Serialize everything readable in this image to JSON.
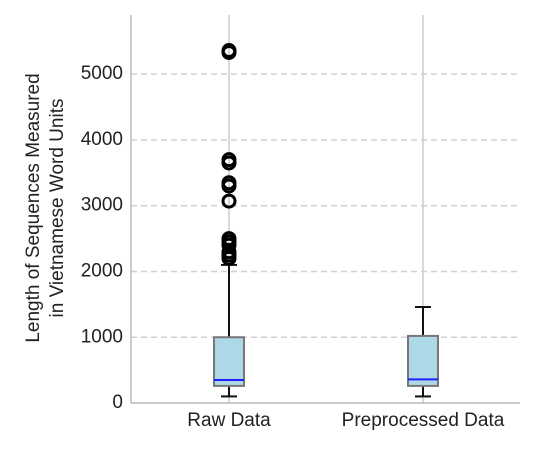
{
  "chart_data": {
    "type": "box",
    "ylabel": [
      "Length of Sequences Measured",
      "in Vietnamese Word Units"
    ],
    "categories": [
      "Raw Data",
      "Preprocessed Data"
    ],
    "boxes": [
      {
        "whislo": 100,
        "q1": 260,
        "med": 350,
        "q3": 1000,
        "whishi": 2100,
        "fliers": [
          2200,
          2250,
          2300,
          2400,
          2450,
          2500,
          3070,
          3300,
          3350,
          3650,
          3700,
          5330,
          5360
        ]
      },
      {
        "whislo": 100,
        "q1": 260,
        "med": 360,
        "q3": 1020,
        "whishi": 1460,
        "fliers": []
      }
    ],
    "box_color": "#add8e6",
    "median_color": "#1f1fff",
    "ylim": [
      0,
      5900
    ],
    "yticks": [
      0,
      1000,
      2000,
      3000,
      4000,
      5000
    ],
    "grid": true
  }
}
